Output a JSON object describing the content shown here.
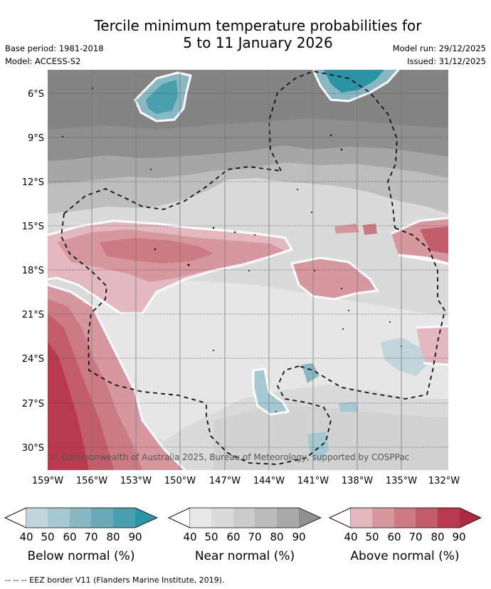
{
  "title": {
    "line1": "Tercile minimum temperature probabilities for",
    "line2": "5 to 11 January 2026"
  },
  "meta": {
    "base_period": "Base period: 1981-2018",
    "model": "Model: ACCESS-S2",
    "model_run": "Model run: 29/12/2025",
    "issued": "Issued: 31/12/2025"
  },
  "map": {
    "lat_labels": [
      "6°S",
      "9°S",
      "12°S",
      "15°S",
      "18°S",
      "21°S",
      "24°S",
      "27°S",
      "30°S"
    ],
    "lon_labels": [
      "159°W",
      "156°W",
      "153°W",
      "150°W",
      "147°W",
      "144°W",
      "141°W",
      "138°W",
      "135°W",
      "132°W"
    ],
    "copyright": "© Commonwealth of Australia 2025, Bureau of Meteorology, supported by COSPPac"
  },
  "colorbars": [
    {
      "label": "Below normal (%)",
      "colors": [
        "#c0d6dc",
        "#a5c9d2",
        "#89b8c4",
        "#6aaab8",
        "#4a9fae",
        "#2a93a6"
      ],
      "ticks": [
        "40",
        "50",
        "60",
        "70",
        "80",
        "90"
      ]
    },
    {
      "label": "Near normal (%)",
      "colors": [
        "#e8e8e8",
        "#dadada",
        "#cbcbcb",
        "#bbbbbb",
        "#a8a8a8",
        "#909090"
      ],
      "ticks": [
        "40",
        "50",
        "60",
        "70",
        "80",
        "90"
      ]
    },
    {
      "label": "Above normal (%)",
      "colors": [
        "#e3b8be",
        "#d6979f",
        "#cc7a84",
        "#c35d69",
        "#b93a4e",
        "#ad2a42"
      ],
      "ticks": [
        "40",
        "50",
        "60",
        "70",
        "80",
        "90"
      ]
    }
  ],
  "legend_footer": "--  --  -- EEZ border V11 (Flanders Marine Institute, 2019)."
}
